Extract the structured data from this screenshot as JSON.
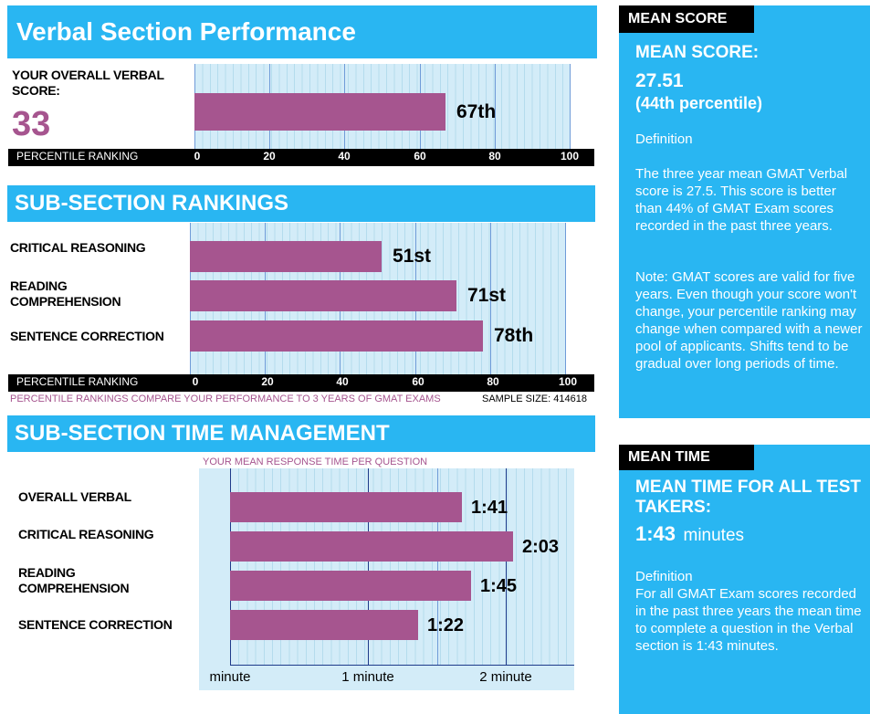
{
  "verbal": {
    "title": "Verbal Section Performance",
    "score_label": "YOUR OVERALL VERBAL SCORE:",
    "score": "33",
    "axis_title": "PERCENTILE RANKING"
  },
  "subsection": {
    "title": "SUB-SECTION RANKINGS",
    "axis_title": "PERCENTILE RANKING",
    "footnote": "PERCENTILE RANKINGS COMPARE YOUR PERFORMANCE TO 3 YEARS OF GMAT EXAMS",
    "sample_size": "SAMPLE SIZE: 414618"
  },
  "time": {
    "title": "SUB-SECTION TIME MANAGEMENT",
    "subtitle": "YOUR MEAN RESPONSE TIME PER QUESTION"
  },
  "sidebar": {
    "mean_score_tag": "MEAN SCORE",
    "mean_score_heading": "MEAN SCORE:",
    "mean_score_value": "27.51",
    "mean_score_percentile": "(44th percentile)",
    "definition_label": "Definition",
    "definition_text": "The three year mean GMAT Verbal  score is 27.5. This score is better than 44% of GMAT Exam scores recorded in the past three years.",
    "note_text": "Note:  GMAT scores are valid for five years. Even though your score won't change, your percentile ranking may change when compared with a newer pool of applicants.  Shifts tend to be gradual over long periods of time.",
    "mean_time_tag": "MEAN TIME",
    "mean_time_heading": "MEAN TIME FOR ALL TEST TAKERS:",
    "mean_time_value": "1:43",
    "mean_time_unit": "minutes",
    "time_definition_label": "Definition",
    "time_definition_text": "For all GMAT Exam scores recorded in the past three years the mean time to complete a question in the Verbal section is 1:43 minutes."
  },
  "chart_data": [
    {
      "type": "bar",
      "orientation": "horizontal",
      "title": "Verbal Section Performance",
      "xlabel": "PERCENTILE RANKING",
      "xlim": [
        0,
        100
      ],
      "ticks": [
        "0",
        "20",
        "40",
        "60",
        "80",
        "100"
      ],
      "categories": [
        "Overall Verbal"
      ],
      "values": [
        67
      ],
      "labels": [
        "67th"
      ]
    },
    {
      "type": "bar",
      "orientation": "horizontal",
      "title": "SUB-SECTION RANKINGS",
      "xlabel": "PERCENTILE RANKING",
      "xlim": [
        0,
        100
      ],
      "ticks": [
        "0",
        "20",
        "40",
        "60",
        "80",
        "100"
      ],
      "categories": [
        "CRITICAL REASONING",
        "READING COMPREHENSION",
        "SENTENCE CORRECTION"
      ],
      "values": [
        51,
        71,
        78
      ],
      "labels": [
        "51st",
        "71st",
        "78th"
      ]
    },
    {
      "type": "bar",
      "orientation": "horizontal",
      "title": "SUB-SECTION TIME MANAGEMENT",
      "xlabel": "YOUR MEAN RESPONSE TIME PER QUESTION",
      "xlim": [
        0,
        150
      ],
      "ticks": [
        "minute",
        "1 minute",
        "2 minute"
      ],
      "tick_values_seconds": [
        0,
        60,
        120
      ],
      "categories": [
        "OVERALL VERBAL",
        "CRITICAL REASONING",
        "READING COMPREHENSION",
        "SENTENCE CORRECTION"
      ],
      "values_seconds": [
        101,
        123,
        105,
        82
      ],
      "labels": [
        "1:41",
        "2:03",
        "1:45",
        "1:22"
      ]
    }
  ]
}
